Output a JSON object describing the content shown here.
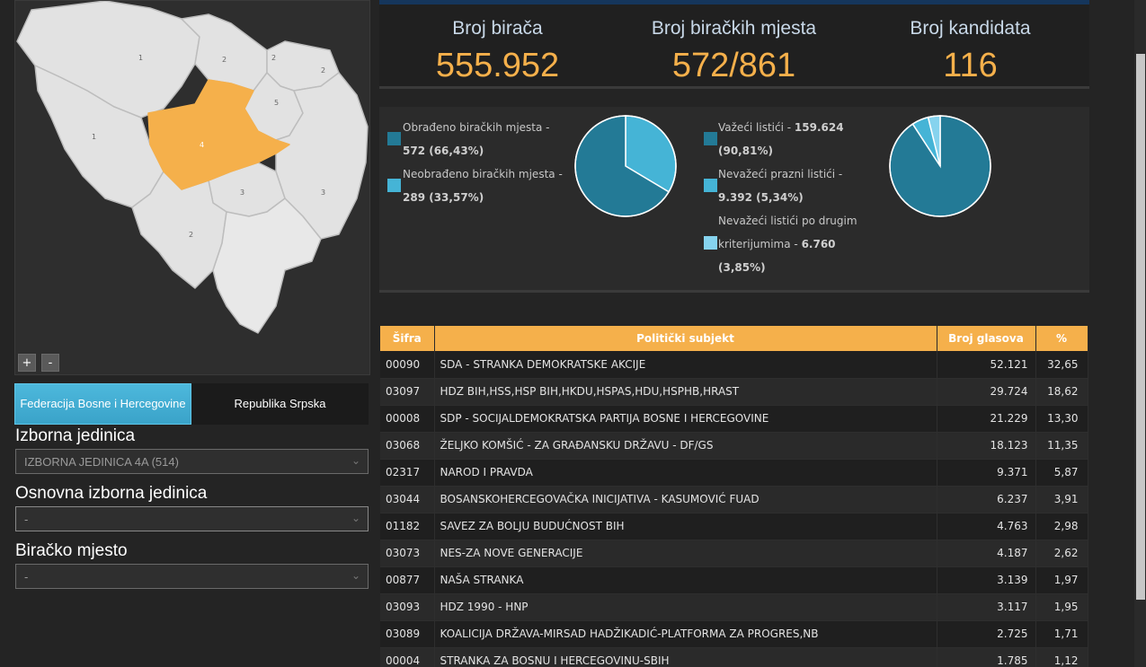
{
  "stats": {
    "voters_label": "Broj birača",
    "voters_value": "555.952",
    "stations_label": "Broj biračkih mjesta",
    "stations_value": "572/861",
    "candidates_label": "Broj kandidata",
    "candidates_value": "116"
  },
  "legend_left": {
    "processed_label": "Obrađeno biračkih mjesta -",
    "processed_value": "572 (66,43%)",
    "unprocessed_label": "Neobrađeno biračkih mjesta -",
    "unprocessed_value": "289 (33,57%)"
  },
  "legend_right": {
    "valid_label": "Važeći listići -",
    "valid_count": "159.624",
    "valid_pct": "(90,81%)",
    "empty_label": "Nevažeći prazni listići -",
    "empty_value": "9.392 (5,34%)",
    "other_line1": "Nevažeći listići po drugim",
    "other_line2": "kriterijumima -",
    "other_count": "6.760",
    "other_pct": "(3,85%)"
  },
  "colors": {
    "accent": "#f5b04b",
    "pie_dark": "#237a96",
    "pie_mid": "#45b4d6",
    "pie_light": "#86d3ee",
    "map_selected": "#f5b04b",
    "map_region": "#e2e2e2"
  },
  "pies": {
    "stations": [
      66.43,
      33.57
    ],
    "ballots": [
      90.81,
      5.34,
      3.85
    ]
  },
  "map": {
    "labels": [
      "1",
      "2",
      "2",
      "5",
      "2",
      "1",
      "4",
      "3",
      "3",
      "2"
    ],
    "zoom_in": "+",
    "zoom_out": "-"
  },
  "entity_tabs": {
    "federation": "Federacija Bosne i Hercegovine",
    "rs": "Republika Srpska"
  },
  "filters": {
    "unit_label": "Izborna jedinica",
    "unit_value": "IZBORNA JEDINICA 4A (514)",
    "basic_label": "Osnovna izborna jedinica",
    "basic_value": "-",
    "station_label": "Biračko mjesto",
    "station_value": "-"
  },
  "table": {
    "headers": [
      "Šifra",
      "Politički subjekt",
      "Broj glasova",
      "%"
    ],
    "rows": [
      [
        "00090",
        "SDA - STRANKA DEMOKRATSKE AKCIJE",
        "52.121",
        "32,65"
      ],
      [
        "03097",
        "HDZ BIH,HSS,HSP BIH,HKDU,HSPAS,HDU,HSPHB,HRAST",
        "29.724",
        "18,62"
      ],
      [
        "00008",
        "SDP - SOCIJALDEMOKRATSKA PARTIJA BOSNE I HERCEGOVINE",
        "21.229",
        "13,30"
      ],
      [
        "03068",
        "ŽELJKO KOMŠIĆ - ZA GRAĐANSKU DRŽAVU - DF/GS",
        "18.123",
        "11,35"
      ],
      [
        "02317",
        "NAROD I PRAVDA",
        "9.371",
        "5,87"
      ],
      [
        "03044",
        "BOSANSKOHERCEGOVAČKA INICIJATIVA - KASUMOVIĆ FUAD",
        "6.237",
        "3,91"
      ],
      [
        "01182",
        "SAVEZ ZA BOLJU BUDUĆNOST BIH",
        "4.763",
        "2,98"
      ],
      [
        "03073",
        "NES-ZA NOVE GENERACIJE",
        "4.187",
        "2,62"
      ],
      [
        "00877",
        "NAŠA STRANKA",
        "3.139",
        "1,97"
      ],
      [
        "03093",
        "HDZ 1990 - HNP",
        "3.117",
        "1,95"
      ],
      [
        "03089",
        "KOALICIJA DRŽAVA-MIRSAD HADŽIKADIĆ-PLATFORMA ZA PROGRES,NB",
        "2.725",
        "1,71"
      ],
      [
        "00004",
        "STRANKA ZA BOSNU I HERCEGOVINU-SBIH",
        "1.785",
        "1,12"
      ]
    ]
  }
}
